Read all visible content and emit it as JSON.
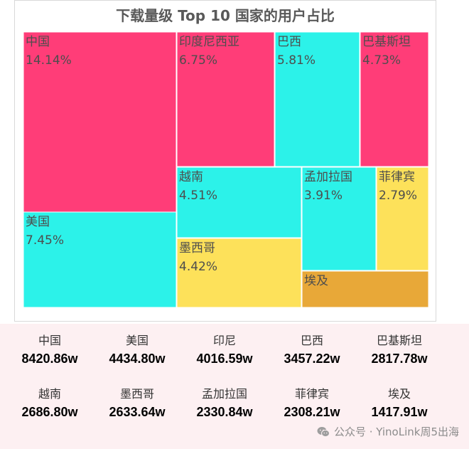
{
  "chart_data": {
    "type": "treemap",
    "title": "下载量级 Top 10 国家的用户占比",
    "colors": {
      "pink": "#ff3d78",
      "cyan": "#2cf2e9",
      "yellow": "#fde15a",
      "orange": "#e8a838"
    },
    "items": [
      {
        "name": "中国",
        "percent": "14.14%",
        "value": 14.14,
        "color": "pink"
      },
      {
        "name": "美国",
        "percent": "7.45%",
        "value": 7.45,
        "color": "cyan"
      },
      {
        "name": "印度尼西亚",
        "percent": "6.75%",
        "value": 6.75,
        "color": "pink"
      },
      {
        "name": "巴西",
        "percent": "5.81%",
        "value": 5.81,
        "color": "cyan"
      },
      {
        "name": "巴基斯坦",
        "percent": "4.73%",
        "value": 4.73,
        "color": "pink"
      },
      {
        "name": "越南",
        "percent": "4.51%",
        "value": 4.51,
        "color": "cyan"
      },
      {
        "name": "墨西哥",
        "percent": "4.42%",
        "value": 4.42,
        "color": "yellow"
      },
      {
        "name": "孟加拉国",
        "percent": "3.91%",
        "value": 3.91,
        "color": "cyan"
      },
      {
        "name": "菲律宾",
        "percent": "2.79%",
        "value": 2.79,
        "color": "yellow"
      },
      {
        "name": "埃及",
        "percent": "",
        "value": 2.0,
        "color": "orange"
      }
    ]
  },
  "stats": [
    {
      "name": "中国",
      "value": "8420.86w"
    },
    {
      "name": "美国",
      "value": "4434.80w"
    },
    {
      "name": "印尼",
      "value": "4016.59w"
    },
    {
      "name": "巴西",
      "value": "3457.22w"
    },
    {
      "name": "巴基斯坦",
      "value": "2817.78w"
    },
    {
      "name": "越南",
      "value": "2686.80w"
    },
    {
      "name": "墨西哥",
      "value": "2633.64w"
    },
    {
      "name": "孟加拉国",
      "value": "2330.84w"
    },
    {
      "name": "菲律宾",
      "value": "2308.21w"
    },
    {
      "name": "埃及",
      "value": "1417.91w"
    }
  ],
  "watermark": {
    "text": "公众号 · YinoLink周5出海",
    "icon": "wechat-icon"
  }
}
